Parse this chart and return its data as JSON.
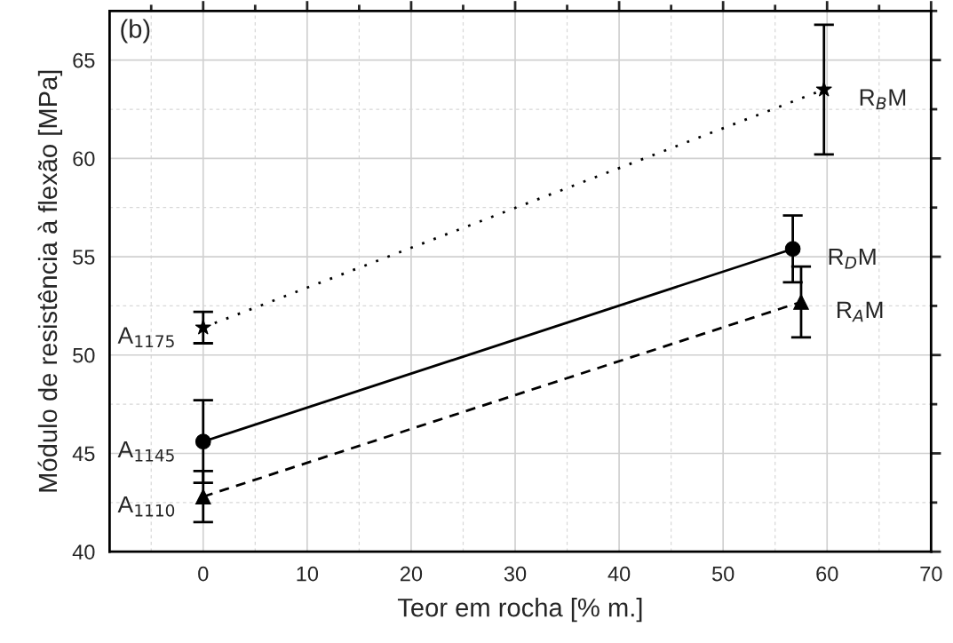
{
  "chart_data": {
    "type": "line",
    "xlabel": "Teor em rocha [% m.]",
    "ylabel": "Módulo de resistência à flexão [MPa]",
    "series": [
      {
        "color": "#000000",
        "x": [
          0,
          59.7
        ],
        "values": [
          51.4,
          63.5
        ],
        "errors": [
          0.8,
          3.3
        ],
        "marker": "star",
        "line_style": "dotted"
      },
      {
        "color": "#000000",
        "x": [
          0,
          56.7
        ],
        "values": [
          45.6,
          55.4
        ],
        "errors": [
          2.1,
          1.7
        ],
        "marker": "circle",
        "line_style": "solid"
      },
      {
        "color": "#000000",
        "x": [
          0,
          57.5
        ],
        "values": [
          42.8,
          52.7
        ],
        "errors": [
          1.3,
          1.8
        ],
        "marker": "triangle",
        "line_style": "dashed"
      }
    ],
    "xlim": [
      -9,
      70
    ],
    "xticks": [
      0,
      10,
      20,
      30,
      40,
      50,
      60,
      70
    ],
    "ylim": [
      40,
      67.5
    ],
    "yticks": [
      40,
      45,
      50,
      55,
      60,
      65
    ],
    "grid": true,
    "annotations": [
      "(b)",
      {
        "text": "A$_{1175}$",
        "x": 0,
        "y": 51.4
      },
      {
        "text": "A$_{1145}$",
        "x": 0,
        "y": 45.6
      },
      {
        "text": "A$_{1110}$",
        "x": 0,
        "y": 42.8
      },
      {
        "text": "R$_{B}$M",
        "x": 59.7,
        "y": 63.5
      },
      {
        "text": "R$_{D}$M",
        "x": 56.7,
        "y": 55.4
      },
      {
        "text": "R$_{A}$M",
        "x": 57.5,
        "y": 52.7
      }
    ]
  }
}
